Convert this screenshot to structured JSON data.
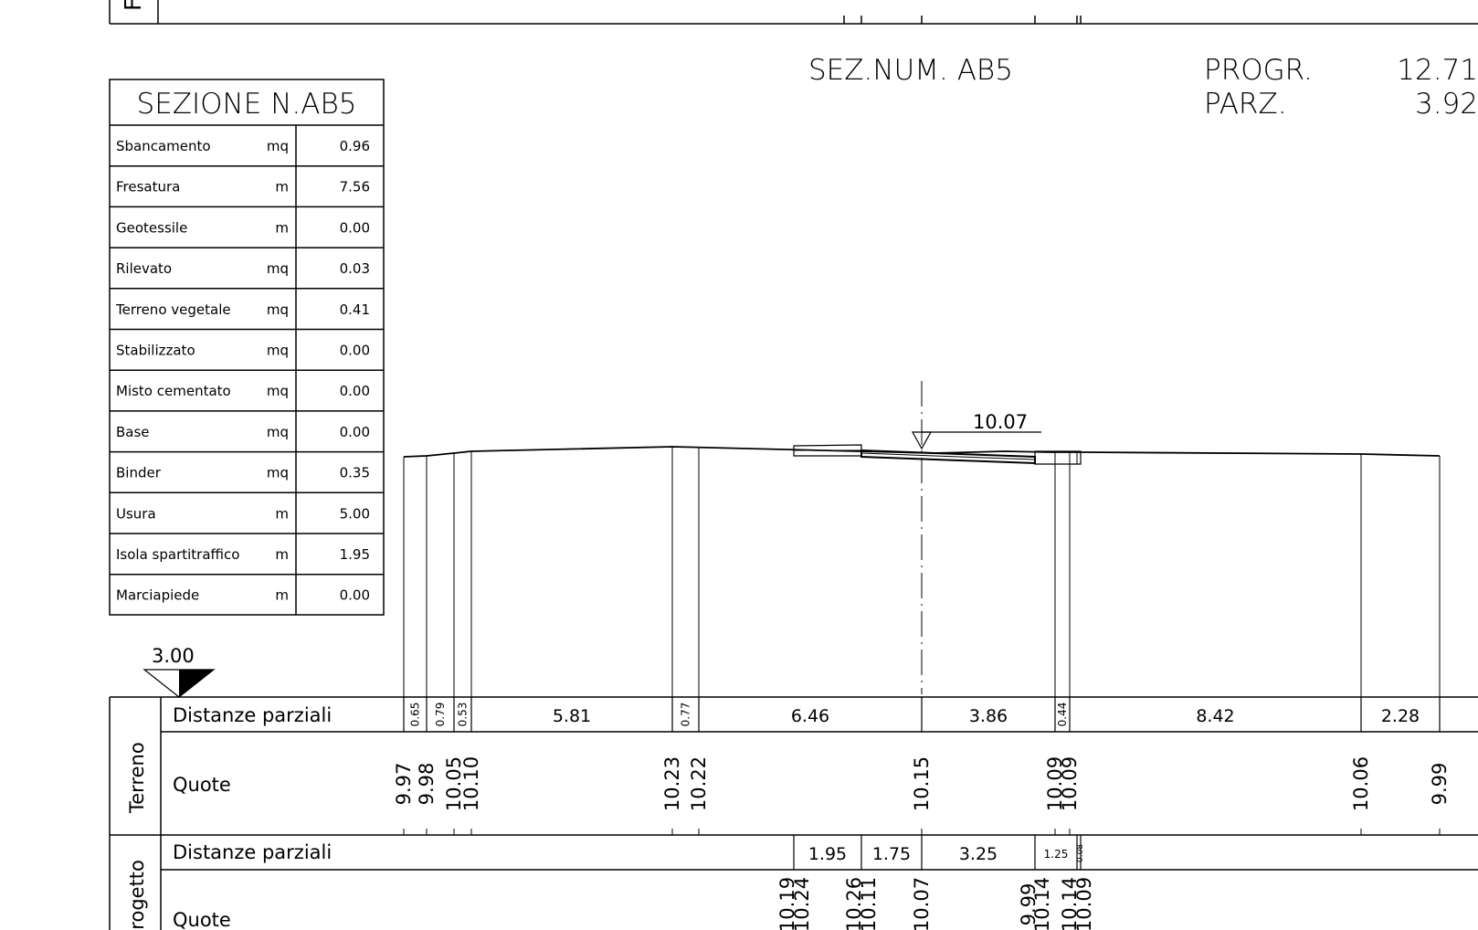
{
  "section_table": {
    "title": "SEZIONE  N.AB5",
    "rows": [
      {
        "label": "Sbancamento",
        "unit": "mq",
        "value": "0.96"
      },
      {
        "label": "Fresatura",
        "unit": "m",
        "value": "7.56"
      },
      {
        "label": "Geotessile",
        "unit": "m",
        "value": "0.00"
      },
      {
        "label": "Rilevato",
        "unit": "mq",
        "value": "0.03"
      },
      {
        "label": "Terreno  vegetale",
        "unit": "mq",
        "value": "0.41"
      },
      {
        "label": "Stabilizzato",
        "unit": "mq",
        "value": "0.00"
      },
      {
        "label": "Misto  cementato",
        "unit": "mq",
        "value": "0.00"
      },
      {
        "label": "Base",
        "unit": "mq",
        "value": "0.00"
      },
      {
        "label": "Binder",
        "unit": "mq",
        "value": "0.35"
      },
      {
        "label": "Usura",
        "unit": "m",
        "value": "5.00"
      },
      {
        "label": "Isola  spartitraffico",
        "unit": "m",
        "value": "1.95"
      },
      {
        "label": "Marciapiede",
        "unit": "m",
        "value": "0.00"
      }
    ]
  },
  "header": {
    "section_number": "SEZ.NUM.  AB5",
    "progr_label": "PROGR.",
    "progr_value": "12.71",
    "parz_label": "PARZ.",
    "parz_value": "3.92"
  },
  "axis_elevation": "10.07",
  "datum": "3.00",
  "top_fragment_label": "F",
  "terreno": {
    "side_label": "Terreno",
    "dist_label": "Distanze  parziali",
    "quote_label": "Quote",
    "distances": [
      "0.65",
      "0.79",
      "0.53",
      "5.81",
      "0.77",
      "6.46",
      "3.86",
      "0.44",
      "8.42",
      "2.28"
    ],
    "quotes": [
      "9.97",
      "9.98",
      "10.05",
      "10.10",
      "10.23",
      "10.22",
      "10.15",
      "10.09",
      "10.09",
      "10.06",
      "9.99"
    ]
  },
  "progetto": {
    "side_label": "Progetto",
    "dist_label": "Distanze  parziali",
    "quote_label": "Quote",
    "distances": [
      "1.95",
      "1.75",
      "3.25",
      "1.25",
      "0.08"
    ],
    "quotes": [
      "10.19",
      "10.24",
      "10.26",
      "10.11",
      "10.07",
      "9.99",
      "10.14",
      "10.14",
      "10.09"
    ]
  }
}
